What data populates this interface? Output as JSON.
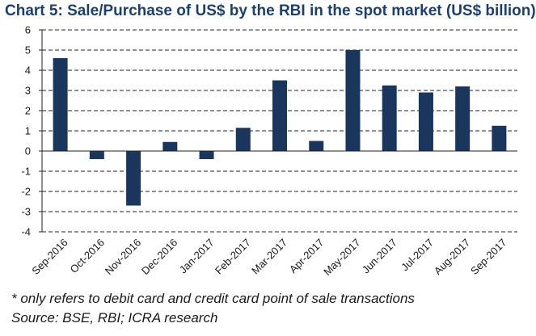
{
  "chart_data": {
    "type": "bar",
    "title": "Chart 5: Sale/Purchase of US$ by the RBI in the spot market (US$ billion)",
    "xlabel": "",
    "ylabel": "",
    "categories": [
      "Sep-2016",
      "Oct-2016",
      "Nov-2016",
      "Dec-2016",
      "Jan-2017",
      "Feb-2017",
      "Mar-2017",
      "Apr-2017",
      "May-2017",
      "Jun-2017",
      "Jul-2017",
      "Aug-2017",
      "Sep-2017"
    ],
    "values": [
      4.6,
      -0.4,
      -2.7,
      0.45,
      -0.4,
      1.15,
      3.5,
      0.5,
      5.0,
      3.25,
      2.9,
      3.2,
      1.25
    ],
    "ylim": [
      -4,
      6
    ],
    "yticks": [
      6,
      5,
      4,
      3,
      2,
      1,
      0,
      -1,
      -2,
      -3,
      -4
    ],
    "grid": true,
    "bar_color": "#1b365d"
  },
  "footnote": "* only refers to debit card and credit card point of sale transactions",
  "source": "Source: BSE, RBI; ICRA research"
}
